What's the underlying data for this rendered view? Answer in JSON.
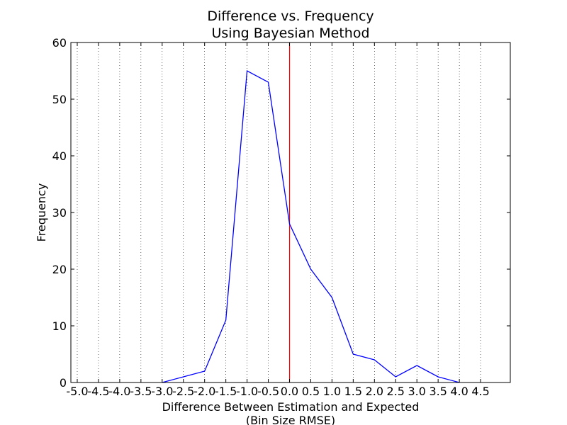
{
  "chart_data": {
    "type": "line",
    "title": [
      "Difference vs. Frequency",
      "Using Bayesian Method"
    ],
    "xlabel": [
      "Difference Between Estimation and Expected",
      "(Bin Size RMSE)"
    ],
    "ylabel": "Frequency",
    "xlim": [
      -5.15,
      5.2
    ],
    "ylim": [
      0,
      60
    ],
    "x_ticks": [
      -5.0,
      -4.5,
      -4.0,
      -3.5,
      -3.0,
      -2.5,
      -2.0,
      -1.5,
      -1.0,
      -0.5,
      0.0,
      0.5,
      1.0,
      1.5,
      2.0,
      2.5,
      3.0,
      3.5,
      4.0,
      4.5
    ],
    "x_tick_labels": [
      "-5.0",
      "-4.5",
      "-4.0",
      "-3.5",
      "-3.0",
      "-2.5",
      "-2.0",
      "-1.5",
      "-1.0",
      "-0.5",
      "0.0",
      "0.5",
      "1.0",
      "1.5",
      "2.0",
      "2.5",
      "3.0",
      "3.5",
      "4.0",
      "4.5"
    ],
    "y_ticks": [
      0,
      10,
      20,
      30,
      40,
      50,
      60
    ],
    "y_tick_labels": [
      "0",
      "10",
      "20",
      "30",
      "40",
      "50",
      "60"
    ],
    "grid": "vertical dotted",
    "series": [
      {
        "color": "#0000ff",
        "x": [
          -3.0,
          -2.5,
          -2.0,
          -1.5,
          -1.0,
          -0.5,
          0.0,
          0.5,
          1.0,
          1.5,
          2.0,
          2.5,
          3.0,
          3.5,
          4.0
        ],
        "values": [
          0,
          1,
          2,
          11,
          55,
          53,
          28,
          20,
          15,
          5,
          4,
          1,
          3,
          1,
          0
        ]
      }
    ],
    "reference_line": {
      "x": 0.0,
      "color": "#ff0000"
    }
  }
}
